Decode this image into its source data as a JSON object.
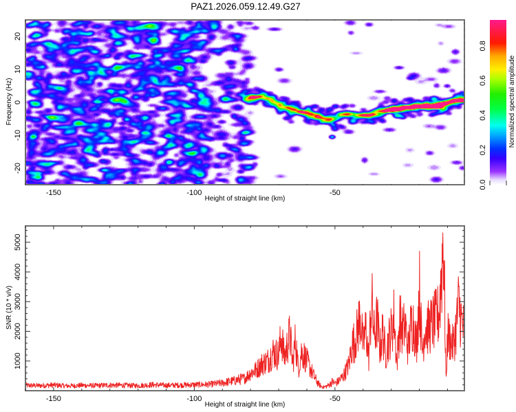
{
  "title": "PAZ1.2026.059.12.49.G27",
  "chart_data": [
    {
      "type": "heatmap",
      "name": "spectrogram",
      "title": "PAZ1.2026.059.12.49.G27",
      "xlabel": "Height of straight line (km)",
      "ylabel": "Frequency (Hz)",
      "xlim": [
        -160,
        -4
      ],
      "ylim": [
        -25,
        25
      ],
      "xticks": [
        -150,
        -100,
        -50
      ],
      "xtick_labels": [
        "-150",
        "-100",
        "-50"
      ],
      "yticks": [
        -20,
        -10,
        0,
        10,
        20
      ],
      "ytick_labels": [
        "-20",
        "-10",
        "0",
        "10",
        "20"
      ],
      "colorbar": {
        "label": "Normalized spectral amplitude",
        "range": [
          0,
          0.95
        ],
        "ticks": [
          0.0,
          0.2,
          0.4,
          0.6,
          0.8
        ],
        "tick_labels": [
          "0.0",
          "0.2",
          "0.4",
          "0.6",
          "0.8"
        ],
        "colormap": [
          "#ffffff",
          "#e6d6ff",
          "#b48cff",
          "#8a2be2",
          "#3300ff",
          "#0033ff",
          "#00aaff",
          "#00ffee",
          "#00ff66",
          "#22ee00",
          "#aaff00",
          "#ffee00",
          "#ffaa00",
          "#ff2200",
          "#ff1e5a",
          "#ff1e8c"
        ]
      },
      "signal_track": {
        "description": "Bright signal ridge (frequency in Hz vs height in km)",
        "x": [
          -82,
          -78,
          -74,
          -70,
          -66,
          -62,
          -58,
          -54,
          -50,
          -46,
          -42,
          -38,
          -34,
          -30,
          -26,
          -22,
          -18,
          -14,
          -10,
          -6,
          -4
        ],
        "freq": [
          1,
          2,
          1,
          -1,
          -2,
          -3,
          -4,
          -5,
          -5,
          -3,
          -4,
          -4,
          -3,
          -2,
          -2,
          -1,
          -1,
          -1,
          0,
          1,
          1
        ],
        "amplitude": [
          0.3,
          0.4,
          0.3,
          0.45,
          0.35,
          0.4,
          0.5,
          0.55,
          0.3,
          0.25,
          0.35,
          0.35,
          0.45,
          0.5,
          0.55,
          0.55,
          0.6,
          0.9,
          0.45,
          0.45,
          0.6
        ]
      },
      "noise_level": 0.12
    },
    {
      "type": "line",
      "name": "snr",
      "xlabel": "Height of straight line (km)",
      "ylabel": "SNR (10 * v/v)",
      "xlim": [
        -160,
        -4
      ],
      "ylim": [
        0,
        5550
      ],
      "xticks": [
        -150,
        -100,
        -50
      ],
      "xtick_labels": [
        "-150",
        "-100",
        "-50"
      ],
      "yticks": [
        1000,
        2000,
        3000,
        4000,
        5000
      ],
      "ytick_labels": [
        "1000",
        "2000",
        "3000",
        "4000",
        "5000"
      ],
      "color": "#ee2222",
      "series": [
        {
          "name": "SNR",
          "x": [
            -160,
            -155,
            -150,
            -145,
            -140,
            -135,
            -130,
            -125,
            -120,
            -115,
            -110,
            -105,
            -100,
            -95,
            -90,
            -88,
            -86,
            -84,
            -82,
            -80,
            -78,
            -76,
            -74,
            -72,
            -70,
            -69,
            -68,
            -67,
            -66,
            -65,
            -64,
            -63,
            -62,
            -61,
            -60,
            -59,
            -58,
            -57,
            -56,
            -55,
            -54,
            -53,
            -52,
            -51,
            -50,
            -49,
            -48,
            -47,
            -46,
            -45,
            -44,
            -43,
            -42,
            -41,
            -40,
            -39,
            -38,
            -37,
            -36,
            -35,
            -34,
            -33,
            -32,
            -31,
            -30,
            -29,
            -28,
            -27,
            -26,
            -25,
            -24,
            -23,
            -22,
            -21,
            -20,
            -19,
            -18,
            -17,
            -16,
            -15,
            -14,
            -13,
            -12,
            -11.5,
            -11,
            -10.5,
            -10,
            -9,
            -8,
            -7,
            -6,
            -5,
            -4
          ],
          "y": [
            180,
            170,
            190,
            160,
            180,
            170,
            190,
            180,
            170,
            200,
            180,
            190,
            200,
            210,
            260,
            300,
            330,
            380,
            420,
            600,
            700,
            900,
            1000,
            1300,
            1200,
            1900,
            1100,
            1500,
            1900,
            900,
            1750,
            700,
            1300,
            1200,
            1000,
            800,
            600,
            400,
            250,
            150,
            120,
            150,
            200,
            300,
            250,
            300,
            400,
            500,
            700,
            900,
            1500,
            1700,
            2000,
            2600,
            1500,
            2100,
            1100,
            3100,
            1800,
            2400,
            1400,
            2000,
            1200,
            1700,
            2000,
            2500,
            900,
            2400,
            2000,
            2200,
            1400,
            2200,
            2300,
            1500,
            3500,
            1300,
            2200,
            2100,
            2200,
            2300,
            2400,
            2600,
            4200,
            5450,
            3000,
            200,
            1900,
            1700,
            1500,
            2100,
            2950,
            2300,
            2000
          ]
        }
      ]
    }
  ]
}
